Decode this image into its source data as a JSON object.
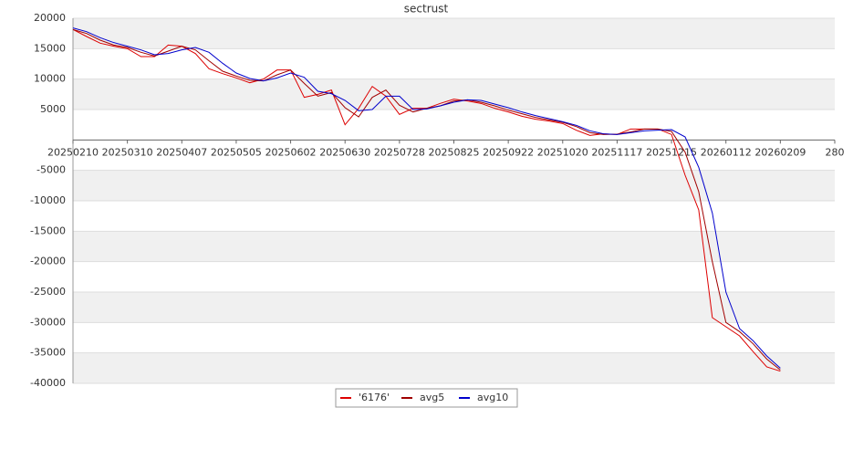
{
  "chart_data": {
    "type": "line",
    "title": "sectrust",
    "x": [
      0,
      5,
      10,
      15,
      20,
      25,
      30,
      35,
      40,
      45,
      50,
      55,
      60,
      65,
      70,
      75,
      80,
      85,
      90,
      95,
      100,
      105,
      110,
      115,
      120,
      125,
      130,
      135,
      140,
      145,
      150,
      155,
      160,
      165,
      170,
      175,
      180,
      185,
      190,
      195,
      200,
      205,
      210,
      215,
      220,
      225,
      230,
      235,
      240,
      245,
      250,
      255,
      260
    ],
    "series": [
      {
        "name": "'6176'",
        "color": "#dd0000",
        "values": [
          18150,
          17000,
          15900,
          15400,
          15000,
          13700,
          13700,
          15600,
          15400,
          14200,
          11700,
          10900,
          10200,
          9400,
          10000,
          11500,
          11500,
          7000,
          7500,
          8200,
          2500,
          5200,
          8800,
          7200,
          4200,
          5200,
          5200,
          6000,
          6700,
          6400,
          6000,
          5200,
          4600,
          3900,
          3400,
          3100,
          2700,
          1600,
          750,
          1000,
          900,
          1800,
          1800,
          1800,
          900,
          -5800,
          -11500,
          -29200,
          -30700,
          -32200,
          -34800,
          -37300,
          -38000
        ]
      },
      {
        "name": "avg5",
        "color": "#a00000",
        "values": [
          18150,
          17500,
          16400,
          15600,
          15200,
          14400,
          13800,
          14600,
          15400,
          14800,
          13000,
          11300,
          10500,
          9800,
          9700,
          10700,
          11500,
          9300,
          7200,
          7800,
          5300,
          3800,
          7000,
          8200,
          5700,
          4600,
          5200,
          5600,
          6400,
          6600,
          6200,
          5600,
          4900,
          4300,
          3700,
          3300,
          2900,
          2200,
          1200,
          900,
          950,
          1300,
          1800,
          1800,
          1400,
          -2000,
          -8500,
          -20000,
          -30000,
          -31500,
          -33500,
          -36000,
          -37800
        ]
      },
      {
        "name": "avg10",
        "color": "#0000cc",
        "values": [
          18400,
          17800,
          16800,
          16000,
          15400,
          14800,
          14000,
          14200,
          14800,
          15200,
          14400,
          12600,
          11000,
          10100,
          9700,
          10200,
          11000,
          10300,
          8000,
          7600,
          6500,
          4800,
          5000,
          7200,
          7200,
          5000,
          5100,
          5600,
          6200,
          6600,
          6500,
          5900,
          5300,
          4600,
          4000,
          3500,
          3000,
          2400,
          1500,
          1000,
          900,
          1200,
          1500,
          1600,
          1700,
          500,
          -4500,
          -12000,
          -25000,
          -31000,
          -33000,
          -35500,
          -37500
        ]
      }
    ],
    "xlim": [
      0,
      280
    ],
    "xticks": [
      {
        "value": 0,
        "label": "20250210"
      },
      {
        "value": 20,
        "label": "20250310"
      },
      {
        "value": 40,
        "label": "20250407"
      },
      {
        "value": 60,
        "label": "20250505"
      },
      {
        "value": 80,
        "label": "20250602"
      },
      {
        "value": 100,
        "label": "20250630"
      },
      {
        "value": 120,
        "label": "20250728"
      },
      {
        "value": 140,
        "label": "20250825"
      },
      {
        "value": 160,
        "label": "20250922"
      },
      {
        "value": 180,
        "label": "20251020"
      },
      {
        "value": 200,
        "label": "20251117"
      },
      {
        "value": 220,
        "label": "20251215"
      },
      {
        "value": 240,
        "label": "20260112"
      },
      {
        "value": 260,
        "label": "20260209"
      },
      280
    ],
    "ylim": [
      -40000,
      20000
    ],
    "yticks": [
      20000,
      15000,
      10000,
      5000,
      -5000,
      -10000,
      -15000,
      -20000,
      -25000,
      -30000,
      -35000,
      -40000
    ],
    "grid": true
  }
}
